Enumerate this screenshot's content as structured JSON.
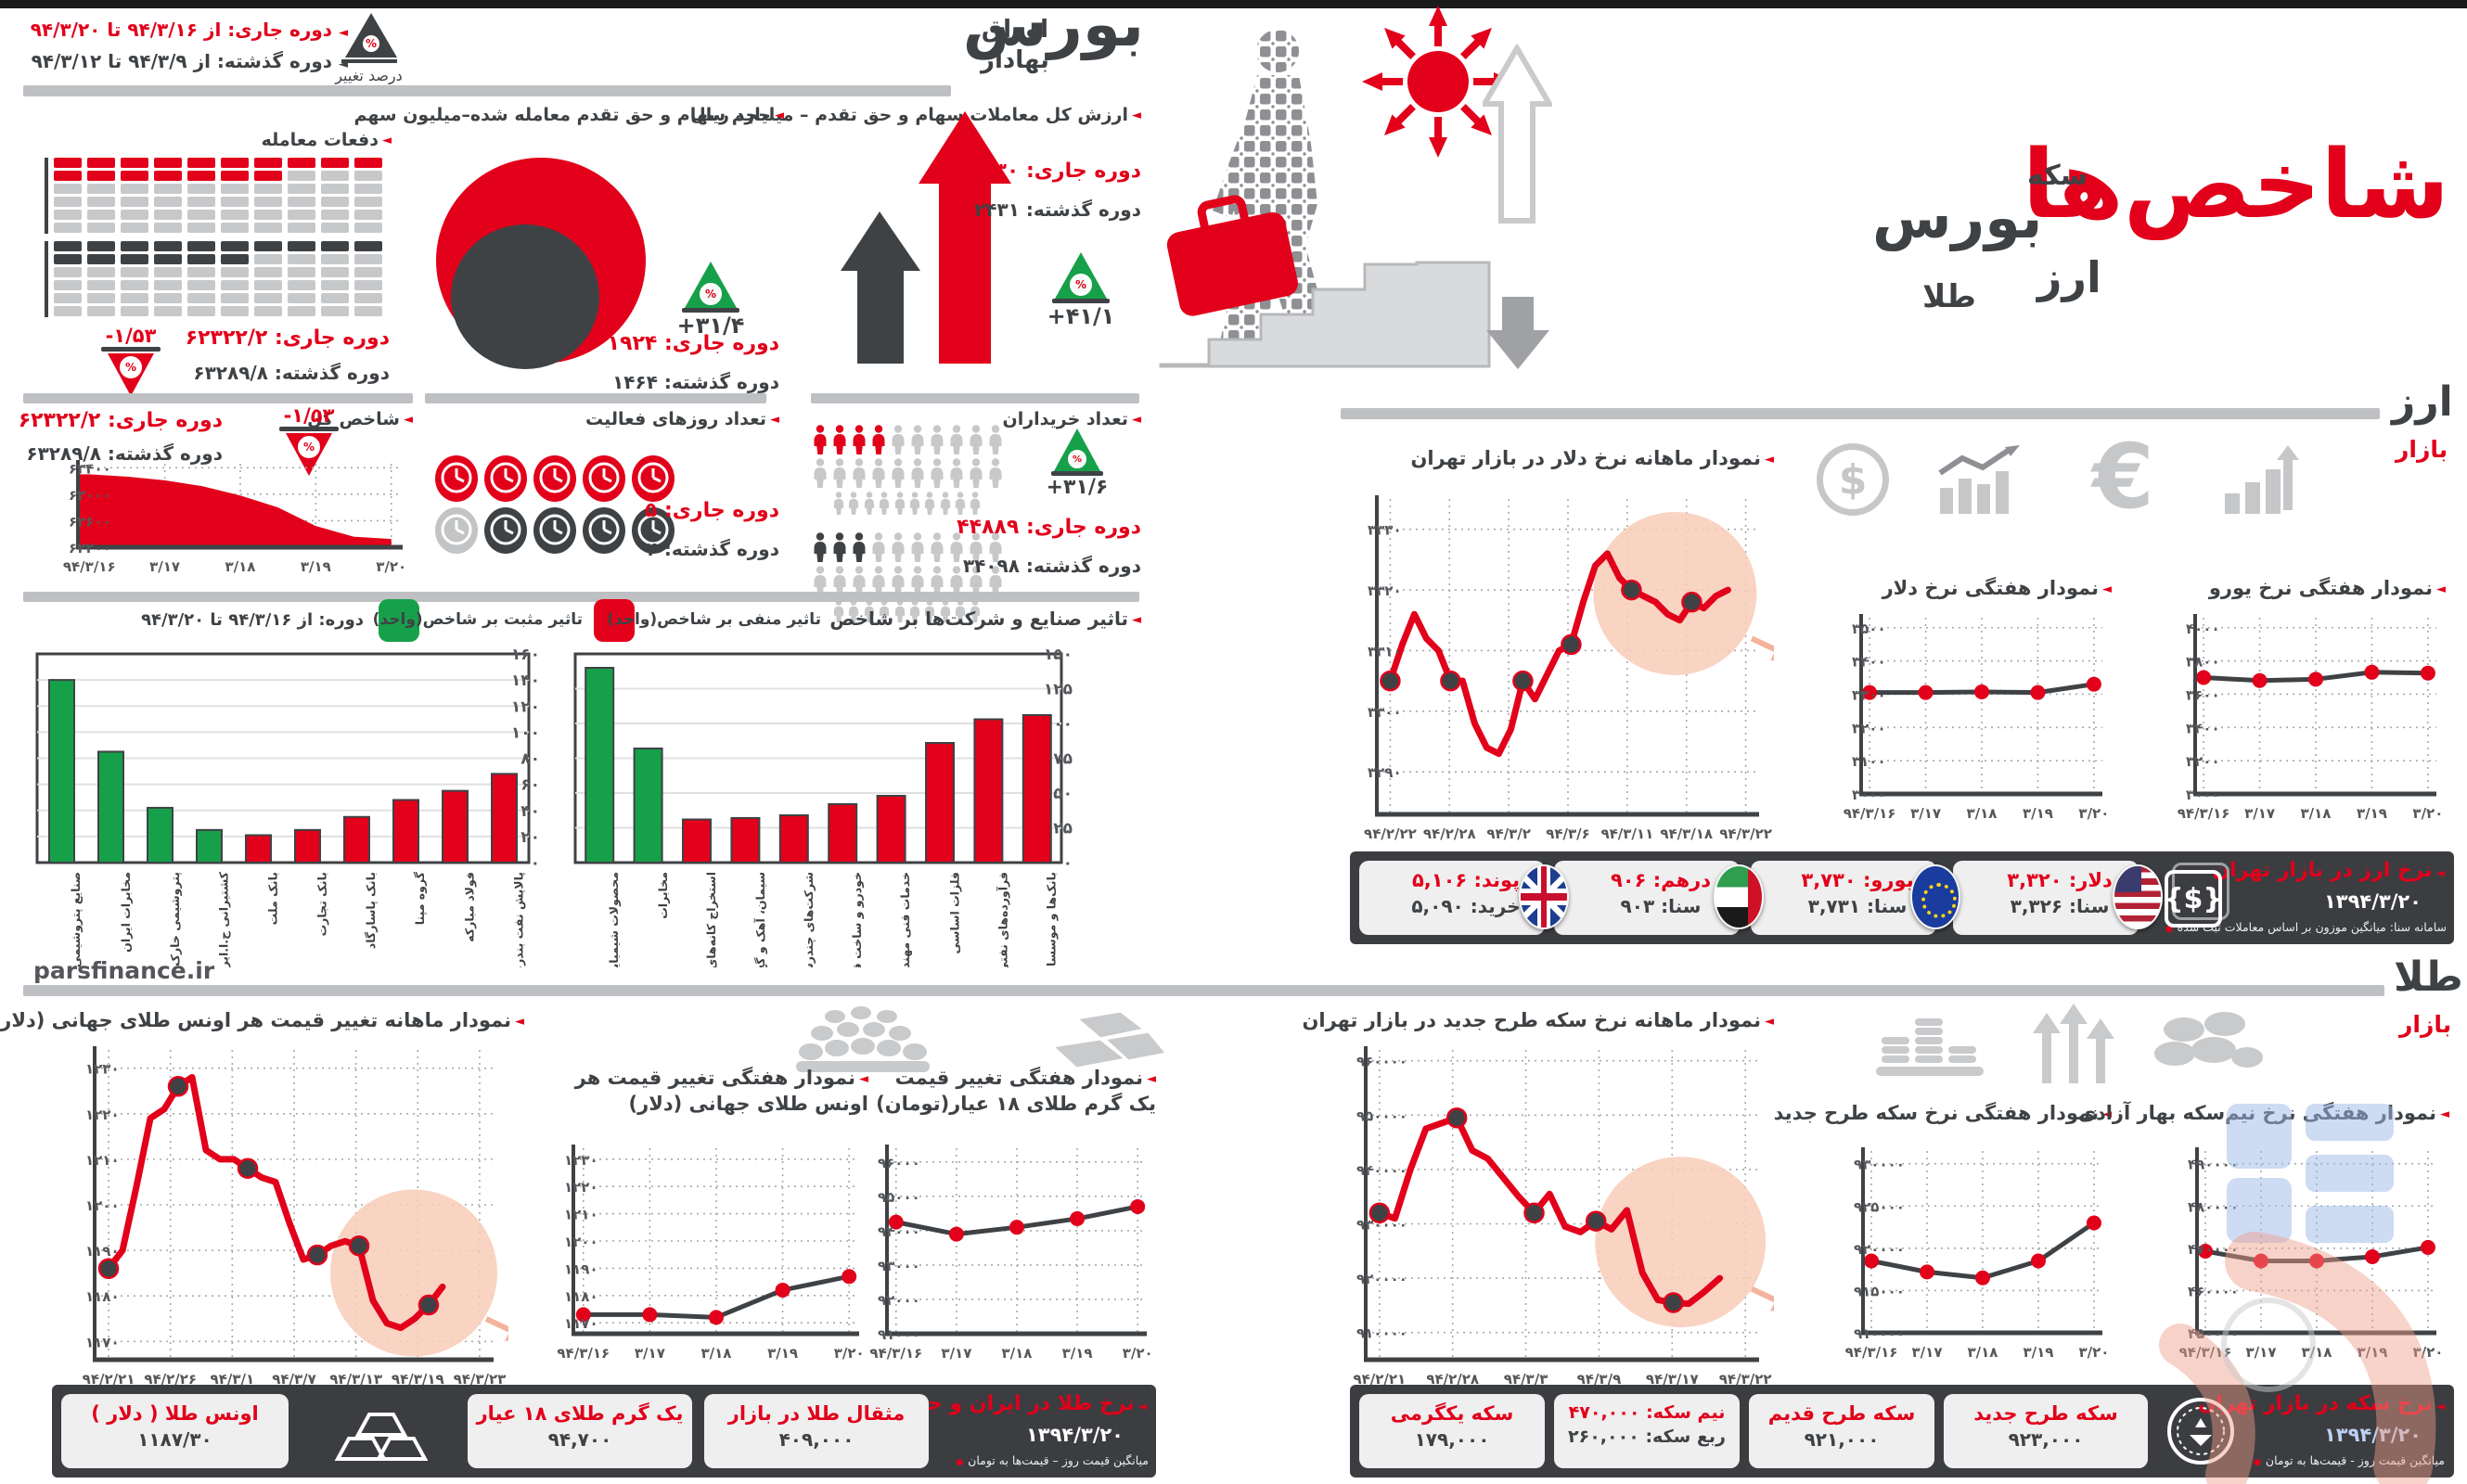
{
  "header": {
    "period_current": "دوره جاری: از ۹۴/۳/۱۶ تا ۹۴/۳/۲۰",
    "period_past": "دوره گذشته: از ۹۴/۳/۹ تا ۹۴/۳/۱۲",
    "pct_change_label": "درصد تغییر",
    "bourse_title_big": "بورس",
    "bourse_title_small": "اوراق بهادار",
    "main_title": "شاخص‌ها",
    "word_coin": "سکه",
    "word_bourse": "بورس",
    "word_currency": "ارز",
    "word_gold": "طلا",
    "site": "parsfinance.ir"
  },
  "bourse": {
    "value": {
      "label": "ارزش کل معاملات سهام و حق تقدم – میلیارد ریال",
      "current": "دوره جاری: ۳۴۳۰",
      "past": "دوره گذشته: ۲۴۳۱",
      "change": "+۴۱/۱"
    },
    "volume": {
      "label": "حجم سهام و حق تقدم معامله شده–میلیون سهم",
      "current": "دوره جاری: ۱۹۲۴",
      "past": "دوره گذشته: ۱۴۶۴",
      "change": "+۳۱/۴"
    },
    "trades": {
      "label": "دفعات معامله",
      "current": "دوره جاری: ۶۲۳۲۲/۲",
      "past": "دوره گذشته: ۶۳۲۸۹/۸",
      "change": "-۱/۵۳"
    },
    "index": {
      "label": "شاخص کل",
      "current": "دوره جاری: ۶۲۳۲۲/۲",
      "past": "دوره گذشته: ۶۳۲۸۹/۸",
      "change": "-۱/۵۳"
    },
    "days": {
      "label": "تعداد روزهای فعالیت",
      "current": "دوره جاری: ۵",
      "past": "دوره گذشته: ۴"
    },
    "buyers": {
      "label": "تعداد خریداران",
      "current": "دوره جاری: ۴۴۸۸۹",
      "past": "دوره گذشته: ۳۴۰۹۸",
      "change": "+۳۱/۶"
    },
    "impact": {
      "title": "تاثیر صنایع و شرکت‌ها بر شاخص",
      "legend_negative": "تاثیر منفی بر شاخص(واحد)",
      "legend_positive": "تاثیر مثبت بر شاخص(واحد)",
      "period": "دوره: از ۹۴/۳/۱۶ تا ۹۴/۳/۲۰"
    }
  },
  "pictographs": {
    "trades_waffle": {
      "cols": 10,
      "rows": 6,
      "current_colored": 17,
      "past_colored": 16
    },
    "days_clocks": {
      "total": 5,
      "current": 5,
      "past": 4
    },
    "buyers_people": {
      "rows": 3,
      "cols": 10,
      "current_colored": 4,
      "past_colored": 3
    }
  },
  "currency": {
    "header_big": "ارز",
    "header_small": "بازار",
    "strip": {
      "title": "نرخ ارز در بازار تهران",
      "date": "۱۳۹۴/۳/۲۰",
      "note": "سامانه سنا: میانگین موزون بر اساس معاملات ثبت شده",
      "cards": [
        {
          "name": "دلار",
          "line1": "دلار: ۳,۳۲۰",
          "line2": "سنا: ۳,۳۲۶",
          "flag": "us"
        },
        {
          "name": "یورو",
          "line1": "یورو: ۳,۷۳۰",
          "line2": "سنا: ۳,۷۳۱",
          "flag": "eu"
        },
        {
          "name": "درهم",
          "line1": "درهم: ۹۰۶",
          "line2": "سنا: ۹۰۳",
          "flag": "ae"
        },
        {
          "name": "پوند",
          "line1": "پوند: ۵,۱۰۶",
          "line2": "خرید: ۵,۰۹۰",
          "flag": "gb"
        }
      ]
    }
  },
  "gold": {
    "header_big": "طلا",
    "header_small": "بازار",
    "strip_gold": {
      "title": "نرخ طلا در ایران و جهان",
      "date": "۱۳۹۴/۳/۲۰",
      "note": "میانگین قیمت روز – قیمت‌ها به تومان",
      "cards": [
        {
          "name": "مثقال طلا در بازار",
          "value": "۴۰۹,۰۰۰"
        },
        {
          "name": "یک گرم طلای ۱۸ عیار",
          "value": "۹۴,۷۰۰"
        },
        {
          "name": "اونس طلا ( دلار )",
          "value": "۱۱۸۷/۳۰"
        }
      ]
    },
    "strip_coin": {
      "title": "نرخ سکه در بازار تهران",
      "date": "۱۳۹۴/۳/۲۰",
      "note": "میانگین قیمت روز - قیمت‌ها به تومان",
      "cards": [
        {
          "name": "سکه طرح جدید",
          "value": "۹۲۳,۰۰۰"
        },
        {
          "name": "سکه طرح قدیم",
          "value": "۹۲۱,۰۰۰"
        },
        {
          "name": "نیم سکه: ۴۷۰,۰۰۰",
          "value": "ربع سکه: ۲۶۰,۰۰۰"
        },
        {
          "name": "سکه یکگرمی",
          "value": "۱۷۹,۰۰۰"
        }
      ]
    }
  },
  "chart_data": [
    {
      "id": "index-area",
      "type": "area",
      "color": "#e2001a",
      "xticks": [
        "۹۴/۳/۱۶",
        "۳/۱۷",
        "۳/۱۸",
        "۳/۱۹",
        "۳/۲۰"
      ],
      "yticks": [
        {
          "v": 63400,
          "label": "۶۳۴۰۰"
        },
        {
          "v": 63000,
          "label": "۶۳۰۰۰"
        },
        {
          "v": 62600,
          "label": "۶۲۶۰۰"
        },
        {
          "v": 62200,
          "label": "۶۲۲۰۰"
        }
      ],
      "ylim": [
        62200,
        63460
      ],
      "values": [
        63300,
        63265,
        63210,
        63120,
        62980,
        62800,
        62520,
        62360,
        62325
      ]
    },
    {
      "id": "usd-monthly",
      "type": "line",
      "title": "نمودار ماهانه نرخ دلار در بازار تهران",
      "xticks": [
        "۹۴/۲/۲۲",
        "۹۴/۲/۲۸",
        "۹۴/۳/۲",
        "۹۴/۳/۶",
        "۹۴/۳/۱۱",
        "۹۴/۳/۱۸",
        "۹۴/۳/۲۲"
      ],
      "yticks": [
        {
          "v": 3330,
          "label": "۳۳۳۰"
        },
        {
          "v": 3320,
          "label": "۳۳۲۰"
        },
        {
          "v": 3310,
          "label": "۳۳۱۰"
        },
        {
          "v": 3300,
          "label": "۳۳۰۰"
        },
        {
          "v": 3290,
          "label": "۳۲۹۰"
        }
      ],
      "ylim": [
        3283,
        3335
      ],
      "xspan": 0.95,
      "values": [
        3305,
        3311,
        3316,
        3312,
        3310,
        3305,
        3305,
        3298,
        3294,
        3293,
        3297,
        3305,
        3302,
        3306,
        3310,
        3311,
        3318,
        3324,
        3326,
        3322,
        3320,
        3319,
        3318,
        3316,
        3315,
        3318,
        3317,
        3319,
        3320
      ],
      "markers": [
        0,
        5,
        11,
        15,
        20,
        25
      ]
    },
    {
      "id": "usd-weekly",
      "type": "line",
      "title": "نمودار هفتگی نرخ دلار",
      "xticks": [
        "۹۴/۳/۱۶",
        "۳/۱۷",
        "۳/۱۸",
        "۳/۱۹",
        "۳/۲۰"
      ],
      "yticks": [
        {
          "v": 3500,
          "label": "۳۵۰۰"
        },
        {
          "v": 3400,
          "label": "۳۴۰۰"
        },
        {
          "v": 3300,
          "label": "۳۳۰۰"
        },
        {
          "v": 3200,
          "label": "۳۲۰۰"
        },
        {
          "v": 3100,
          "label": "۳۱۰۰"
        },
        {
          "v": 3000,
          "label": "۳۰۰۰"
        }
      ],
      "ylim": [
        3000,
        3530
      ],
      "values": [
        3305,
        3305,
        3307,
        3305,
        3330
      ]
    },
    {
      "id": "eur-weekly",
      "type": "line",
      "title": "نمودار هفتگی نرخ یورو",
      "xticks": [
        "۹۴/۳/۱۶",
        "۳/۱۷",
        "۳/۱۸",
        "۳/۱۹",
        "۳/۲۰"
      ],
      "yticks": [
        {
          "v": 4000,
          "label": "۴۰۰۰"
        },
        {
          "v": 3800,
          "label": "۳۸۰۰"
        },
        {
          "v": 3600,
          "label": "۳۶۰۰"
        },
        {
          "v": 3400,
          "label": "۳۴۰۰"
        },
        {
          "v": 3200,
          "label": "۳۲۰۰"
        },
        {
          "v": 3000,
          "label": "۳۰۰۰"
        }
      ],
      "ylim": [
        3000,
        4060
      ],
      "values": [
        3700,
        3682,
        3690,
        3732,
        3727
      ]
    },
    {
      "id": "gold-oz-monthly",
      "type": "line",
      "title": "نمودار ماهانه تغییر قیمت هر اونس طلای جهانی (دلار)",
      "xticks": [
        "۹۴/۲/۲۱",
        "۹۴/۲/۲۶",
        "۹۴/۳/۱",
        "۹۴/۳/۷",
        "۹۴/۳/۱۳",
        "۹۴/۳/۱۹",
        "۹۴/۳/۲۳"
      ],
      "yticks": [
        {
          "v": 1230,
          "label": "۱۲۳۰"
        },
        {
          "v": 1220,
          "label": "۱۲۲۰"
        },
        {
          "v": 1210,
          "label": "۱۲۱۰"
        },
        {
          "v": 1200,
          "label": "۱۲۰۰"
        },
        {
          "v": 1190,
          "label": "۱۱۹۰"
        },
        {
          "v": 1180,
          "label": "۱۱۸۰"
        },
        {
          "v": 1170,
          "label": "۱۱۷۰"
        }
      ],
      "ylim": [
        1166,
        1234
      ],
      "xspan": 0.9,
      "values": [
        1186,
        1190,
        1204,
        1219,
        1221,
        1226,
        1228,
        1212,
        1210,
        1210,
        1208,
        1206,
        1205,
        1196,
        1188,
        1189,
        1191,
        1192,
        1191,
        1179,
        1174,
        1173,
        1175,
        1178,
        1182
      ],
      "markers": [
        0,
        5,
        10,
        15,
        18,
        23
      ]
    },
    {
      "id": "gold-oz-weekly",
      "type": "line",
      "title": "نمودار هفتگی تغییر قیمت هر اونس طلای جهانی (دلار)",
      "xticks": [
        "۹۴/۳/۱۶",
        "۳/۱۷",
        "۳/۱۸",
        "۳/۱۹",
        "۳/۲۰"
      ],
      "yticks": [
        {
          "v": 1230,
          "label": "۱۲۳۰"
        },
        {
          "v": 1220,
          "label": "۱۲۲۰"
        },
        {
          "v": 1210,
          "label": "۱۲۱۰"
        },
        {
          "v": 1200,
          "label": "۱۲۰۰"
        },
        {
          "v": 1190,
          "label": "۱۱۹۰"
        },
        {
          "v": 1180,
          "label": "۱۱۸۰"
        },
        {
          "v": 1170,
          "label": "۱۱۷۰"
        }
      ],
      "ylim": [
        1166,
        1234
      ],
      "values": [
        1173,
        1173,
        1172,
        1182,
        1187
      ]
    },
    {
      "id": "gold-18k-weekly",
      "type": "line",
      "title": "نمودار هفتگی تغییر قیمت یک گرم طلای ۱۸ عیار(تومان)",
      "xticks": [
        "۹۴/۳/۱۶",
        "۳/۱۷",
        "۳/۱۸",
        "۳/۱۹",
        "۳/۲۰"
      ],
      "yticks": [
        {
          "v": 96000,
          "label": "۹۶۰۰۰"
        },
        {
          "v": 95000,
          "label": "۹۵۰۰۰"
        },
        {
          "v": 94000,
          "label": "۹۴۰۰۰"
        },
        {
          "v": 93000,
          "label": "۹۳۰۰۰"
        },
        {
          "v": 92000,
          "label": "۹۲۰۰۰"
        },
        {
          "v": 91000,
          "label": "۹۱۰۰۰"
        }
      ],
      "ylim": [
        91000,
        96400
      ],
      "values": [
        94250,
        93900,
        94100,
        94350,
        94700
      ]
    },
    {
      "id": "coin-monthly",
      "type": "line",
      "title": "نمودار ماهانه نرخ سکه طرح جدید در بازار تهران",
      "xticks": [
        "۹۴/۲/۲۱",
        "۹۴/۲/۲۸",
        "۹۴/۳/۳",
        "۹۴/۳/۹",
        "۹۴/۳/۱۷",
        "۹۴/۳/۲۲"
      ],
      "yticks": [
        {
          "v": 960000,
          "label": "۹۶۰۰۰۰"
        },
        {
          "v": 950000,
          "label": "۹۵۰۰۰۰"
        },
        {
          "v": 940000,
          "label": "۹۴۰۰۰۰"
        },
        {
          "v": 930000,
          "label": "۹۳۰۰۰۰"
        },
        {
          "v": 920000,
          "label": "۹۲۰۰۰۰"
        },
        {
          "v": 910000,
          "label": "۹۱۰۰۰۰"
        }
      ],
      "ylim": [
        905000,
        962000
      ],
      "xspan": 0.93,
      "values": [
        932000,
        931000,
        940000,
        947500,
        948500,
        949500,
        943500,
        942000,
        938500,
        935000,
        932000,
        935500,
        929500,
        928500,
        930500,
        929000,
        932500,
        921000,
        916000,
        915500,
        915300,
        917500,
        920000
      ],
      "markers": [
        0,
        5,
        10,
        14,
        19
      ]
    },
    {
      "id": "coin-weekly",
      "type": "line",
      "title": "نمودار هفتگی نرخ سکه طرح جدید",
      "xticks": [
        "۹۴/۳/۱۶",
        "۳/۱۷",
        "۳/۱۸",
        "۳/۱۹",
        "۳/۲۰"
      ],
      "yticks": [
        {
          "v": 930000,
          "label": "۹۳۰۰۰۰"
        },
        {
          "v": 925000,
          "label": "۹۲۵۰۰۰"
        },
        {
          "v": 920000,
          "label": "۹۲۰۰۰۰"
        },
        {
          "v": 915000,
          "label": "۹۱۵۰۰۰"
        },
        {
          "v": 910000,
          "label": "۹۱۰۰۰۰"
        }
      ],
      "ylim": [
        910000,
        931500
      ],
      "values": [
        918500,
        917200,
        916500,
        918500,
        923000
      ]
    },
    {
      "id": "halfcoin-weekly",
      "type": "line",
      "title": "نمودار هفتگی نرخ نیم‌سکه بهار آزادی",
      "xticks": [
        "۹۴/۳/۱۶",
        "۳/۱۷",
        "۳/۱۸",
        "۳/۱۹",
        "۳/۲۰"
      ],
      "yticks": [
        {
          "v": 490000,
          "label": "۴۹۰۰۰۰"
        },
        {
          "v": 480000,
          "label": "۴۸۰۰۰۰"
        },
        {
          "v": 470000,
          "label": "۴۷۰۰۰۰"
        },
        {
          "v": 460000,
          "label": "۴۶۰۰۰۰"
        },
        {
          "v": 450000,
          "label": "۴۵۰۰۰۰"
        }
      ],
      "ylim": [
        450000,
        493000
      ],
      "values": [
        469300,
        467000,
        467000,
        468000,
        470200
      ]
    },
    {
      "id": "companies-bar",
      "type": "bar",
      "categories": [
        "صنایع پتروشیمی خلیج‌فارس",
        "مخابرات ایران",
        "پتروشیمی خارک",
        "کشتیرانی ج.ا.ایران",
        "بانک ملت",
        "بانک تجارت",
        "بانک پاسارگاد",
        "گروه مپنا",
        "فولاد مبارکه",
        "پالایش نفت بندرعباس"
      ],
      "values": [
        140,
        85,
        42,
        25,
        21,
        25,
        35,
        48,
        55,
        68
      ],
      "positive_count": 4,
      "ylim": [
        0,
        160
      ],
      "yticks": [
        {
          "v": 160,
          "label": "۱۶۰"
        },
        {
          "v": 140,
          "label": "۱۴۰"
        },
        {
          "v": 120,
          "label": "۱۲۰"
        },
        {
          "v": 100,
          "label": "۱۰۰"
        },
        {
          "v": 80,
          "label": "۸۰"
        },
        {
          "v": 60,
          "label": "۶۰"
        },
        {
          "v": 40,
          "label": "۴۰"
        },
        {
          "v": 20,
          "label": "۲۰"
        },
        {
          "v": 0,
          "label": "۰"
        }
      ]
    },
    {
      "id": "industries-bar",
      "type": "bar",
      "categories": [
        "محصولات شیمیایی",
        "مخابرات",
        "استخراج کانه‌های فلزی",
        "سیمان، آهک و گچ",
        "شرکت‌های چندرشته‌ای",
        "خودرو و ساخت قطعات",
        "خدمات فنی مهندسی",
        "فلزات اساسی",
        "فرآورده‌های نفتی و ...",
        "بانک‌ها و موسسات مالی"
      ],
      "values": [
        140,
        82,
        31,
        32,
        34,
        42,
        48,
        86,
        103,
        106
      ],
      "positive_count": 2,
      "ylim": [
        0,
        150
      ],
      "yticks": [
        {
          "v": 150,
          "label": "۱۵۰"
        },
        {
          "v": 125,
          "label": "۱۲۵"
        },
        {
          "v": 100,
          "label": "۱۰۰"
        },
        {
          "v": 75,
          "label": "۷۵"
        },
        {
          "v": 50,
          "label": "۵۰"
        },
        {
          "v": 25,
          "label": "۲۵"
        },
        {
          "v": 0,
          "label": "۰"
        }
      ]
    }
  ],
  "colors": {
    "red": "#e2001a",
    "green": "#17a04a",
    "dark": "#3f4245",
    "light_gray": "#c7c8ca",
    "pink": "#f8cdb9"
  }
}
